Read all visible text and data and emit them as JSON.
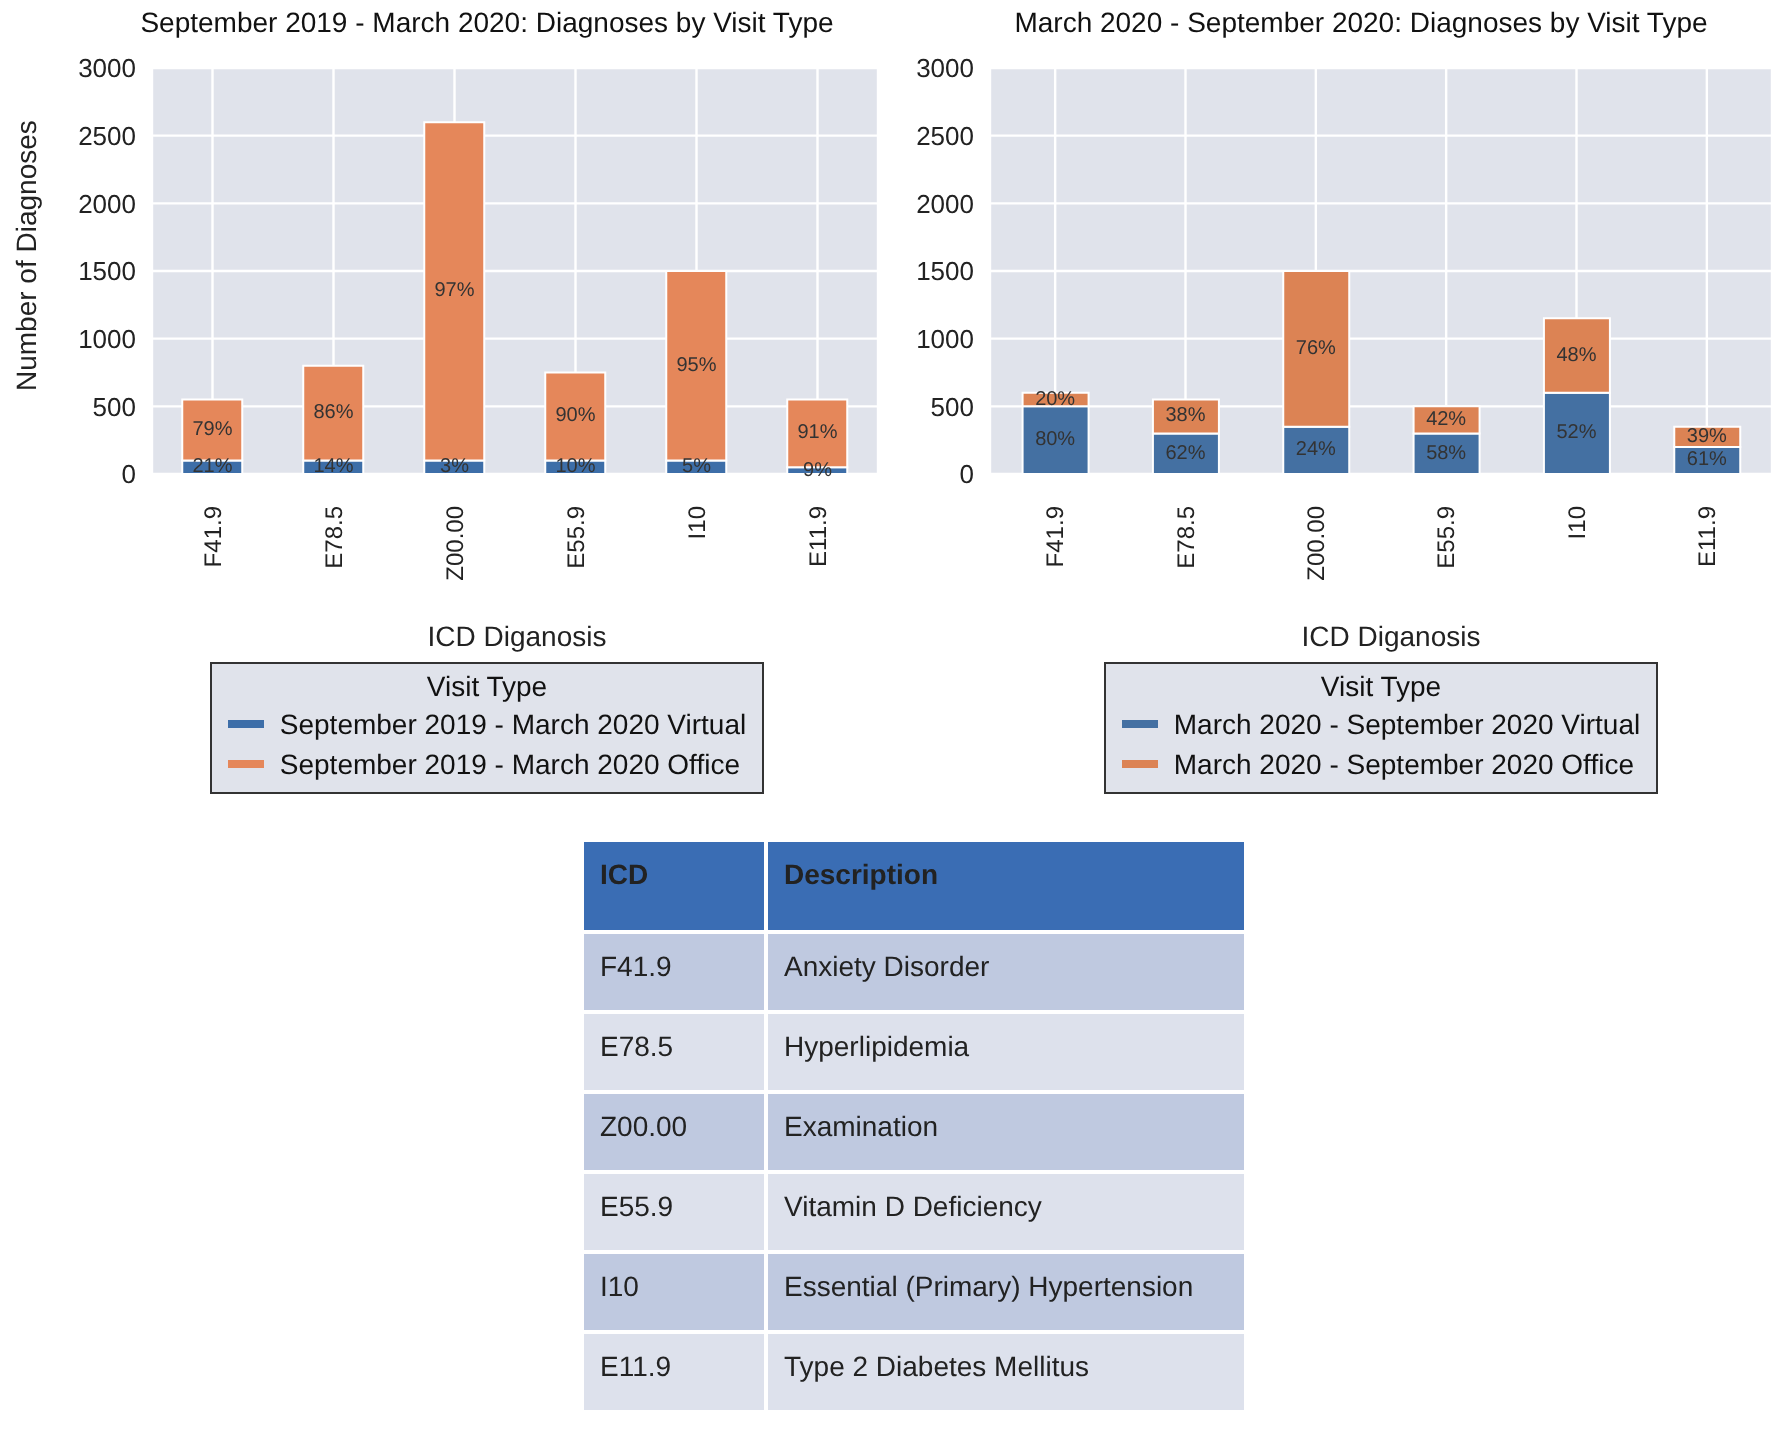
{
  "chart_data": [
    {
      "type": "bar",
      "stacked": true,
      "title": "September 2019 - March 2020: Diagnoses by Visit Type",
      "xlabel": "ICD Diganosis",
      "ylabel": "Number of Diagnoses",
      "categories": [
        "F41.9",
        "E78.5",
        "Z00.00",
        "E55.9",
        "I10",
        "E11.9"
      ],
      "series": [
        {
          "name": "September 2019 - March 2020 Virtual",
          "color": "#3d6ea8",
          "values": [
            100,
            100,
            100,
            100,
            100,
            50
          ]
        },
        {
          "name": "September 2019 - March 2020 Office",
          "color": "#e5875a",
          "values": [
            450,
            700,
            2500,
            650,
            1400,
            500
          ]
        }
      ],
      "annotations": [
        "21%",
        "14%",
        "3%",
        "10%",
        "5%",
        "9%",
        "79%",
        "86%",
        "97%",
        "90%",
        "95%",
        "91%"
      ],
      "ylim": [
        0,
        3000
      ],
      "yticks": [
        0,
        500,
        1000,
        1500,
        2000,
        2500,
        3000
      ],
      "grid": true,
      "legend": "bottom",
      "legend_title": "Visit Type"
    },
    {
      "type": "bar",
      "stacked": true,
      "title": "March 2020 - September 2020: Diagnoses by Visit Type",
      "xlabel": "ICD Diganosis",
      "categories": [
        "F41.9",
        "E78.5",
        "Z00.00",
        "E55.9",
        "I10",
        "E11.9"
      ],
      "series": [
        {
          "name": "March 2020 - September 2020 Virtual",
          "color": "#4470a2",
          "values": [
            500,
            300,
            350,
            300,
            600,
            200
          ]
        },
        {
          "name": "March 2020 - September 2020 Office",
          "color": "#dc8354",
          "values": [
            100,
            250,
            1150,
            200,
            550,
            150
          ]
        }
      ],
      "annotations": [
        "80%",
        "62%",
        "24%",
        "58%",
        "52%",
        "61%",
        "20%",
        "38%",
        "76%",
        "42%",
        "48%",
        "39%"
      ],
      "ylim": [
        0,
        3000
      ],
      "yticks": [
        0,
        500,
        1000,
        1500,
        2000,
        2500,
        3000
      ],
      "grid": true,
      "legend": "bottom",
      "legend_title": "Visit Type"
    },
    {
      "type": "other",
      "annotations": [
        "ICD",
        "Description",
        "F41.9",
        "Anxiety Disorder",
        "E78.5",
        "Hyperlipidemia",
        "Z00.00",
        "Examination",
        "E55.9",
        "Vitamin D Deficiency",
        "I10",
        "Essential (Primary) Hypertension",
        "E11.9",
        "Type 2 Diabetes Mellitus"
      ]
    }
  ]
}
